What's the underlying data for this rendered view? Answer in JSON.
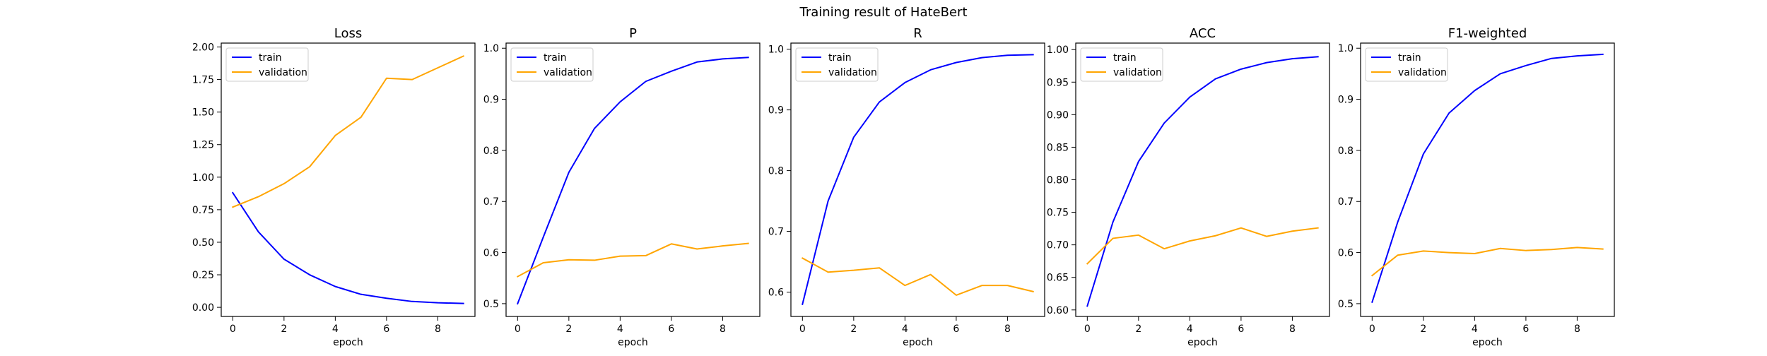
{
  "figure": {
    "suptitle": "Training result of HateBert"
  },
  "colors": {
    "train": "#0000ff",
    "validation": "#ffa500"
  },
  "chart_data": [
    {
      "type": "line",
      "title": "Loss",
      "xlabel": "epoch",
      "ylabel": "",
      "x": [
        0,
        1,
        2,
        3,
        4,
        5,
        6,
        7,
        8,
        9
      ],
      "xticks": [
        0,
        2,
        4,
        6,
        8
      ],
      "xlim": [
        -0.45,
        9.45
      ],
      "ylim": [
        -0.07,
        2.03
      ],
      "yticks": [
        0.0,
        0.25,
        0.5,
        0.75,
        1.0,
        1.25,
        1.5,
        1.75,
        2.0
      ],
      "ytick_labels": [
        "0.00",
        "0.25",
        "0.50",
        "0.75",
        "1.00",
        "1.25",
        "1.50",
        "1.75",
        "2.00"
      ],
      "legend": "upper-left",
      "grid": false,
      "series": [
        {
          "name": "train",
          "values": [
            0.88,
            0.58,
            0.37,
            0.25,
            0.16,
            0.1,
            0.07,
            0.045,
            0.035,
            0.03
          ]
        },
        {
          "name": "validation",
          "values": [
            0.77,
            0.85,
            0.95,
            1.08,
            1.32,
            1.46,
            1.76,
            1.75,
            1.84,
            1.93
          ]
        }
      ]
    },
    {
      "type": "line",
      "title": "P",
      "xlabel": "epoch",
      "ylabel": "",
      "x": [
        0,
        1,
        2,
        3,
        4,
        5,
        6,
        7,
        8,
        9
      ],
      "xticks": [
        0,
        2,
        4,
        6,
        8
      ],
      "xlim": [
        -0.45,
        9.45
      ],
      "ylim": [
        0.475,
        1.01
      ],
      "yticks": [
        0.5,
        0.6,
        0.7,
        0.8,
        0.9,
        1.0
      ],
      "ytick_labels": [
        "0.5",
        "0.6",
        "0.7",
        "0.8",
        "0.9",
        "1.0"
      ],
      "legend": "upper-left",
      "grid": false,
      "series": [
        {
          "name": "train",
          "values": [
            0.5,
            0.63,
            0.757,
            0.843,
            0.895,
            0.935,
            0.955,
            0.973,
            0.979,
            0.982
          ]
        },
        {
          "name": "validation",
          "values": [
            0.553,
            0.58,
            0.586,
            0.585,
            0.593,
            0.594,
            0.617,
            0.607,
            0.613,
            0.618
          ]
        }
      ]
    },
    {
      "type": "line",
      "title": "R",
      "xlabel": "epoch",
      "ylabel": "",
      "x": [
        0,
        1,
        2,
        3,
        4,
        5,
        6,
        7,
        8,
        9
      ],
      "xticks": [
        0,
        2,
        4,
        6,
        8
      ],
      "xlim": [
        -0.45,
        9.45
      ],
      "ylim": [
        0.56,
        1.01
      ],
      "yticks": [
        0.6,
        0.7,
        0.8,
        0.9,
        1.0
      ],
      "ytick_labels": [
        "0.6",
        "0.7",
        "0.8",
        "0.9",
        "1.0"
      ],
      "legend": "upper-left",
      "grid": false,
      "series": [
        {
          "name": "train",
          "values": [
            0.58,
            0.75,
            0.855,
            0.913,
            0.945,
            0.966,
            0.978,
            0.986,
            0.99,
            0.991
          ]
        },
        {
          "name": "validation",
          "values": [
            0.656,
            0.633,
            0.636,
            0.64,
            0.611,
            0.629,
            0.595,
            0.611,
            0.611,
            0.601
          ]
        }
      ]
    },
    {
      "type": "line",
      "title": "ACC",
      "xlabel": "epoch",
      "ylabel": "",
      "x": [
        0,
        1,
        2,
        3,
        4,
        5,
        6,
        7,
        8,
        9
      ],
      "xticks": [
        0,
        2,
        4,
        6,
        8
      ],
      "xlim": [
        -0.45,
        9.45
      ],
      "ylim": [
        0.59,
        1.01
      ],
      "yticks": [
        0.6,
        0.65,
        0.7,
        0.75,
        0.8,
        0.85,
        0.9,
        0.95,
        1.0
      ],
      "ytick_labels": [
        "0.60",
        "0.65",
        "0.70",
        "0.75",
        "0.80",
        "0.85",
        "0.90",
        "0.95",
        "1.00"
      ],
      "legend": "upper-left",
      "grid": false,
      "series": [
        {
          "name": "train",
          "values": [
            0.606,
            0.735,
            0.828,
            0.887,
            0.927,
            0.955,
            0.97,
            0.98,
            0.986,
            0.989
          ]
        },
        {
          "name": "validation",
          "values": [
            0.671,
            0.71,
            0.715,
            0.694,
            0.706,
            0.714,
            0.726,
            0.713,
            0.721,
            0.726
          ]
        }
      ]
    },
    {
      "type": "line",
      "title": "F1-weighted",
      "xlabel": "epoch",
      "ylabel": "",
      "x": [
        0,
        1,
        2,
        3,
        4,
        5,
        6,
        7,
        8,
        9
      ],
      "xticks": [
        0,
        2,
        4,
        6,
        8
      ],
      "xlim": [
        -0.45,
        9.45
      ],
      "ylim": [
        0.475,
        1.01
      ],
      "yticks": [
        0.5,
        0.6,
        0.7,
        0.8,
        0.9,
        1.0
      ],
      "ytick_labels": [
        "0.5",
        "0.6",
        "0.7",
        "0.8",
        "0.9",
        "1.0"
      ],
      "legend": "upper-left",
      "grid": false,
      "series": [
        {
          "name": "train",
          "values": [
            0.503,
            0.66,
            0.793,
            0.873,
            0.917,
            0.95,
            0.966,
            0.98,
            0.985,
            0.988
          ]
        },
        {
          "name": "validation",
          "values": [
            0.555,
            0.595,
            0.603,
            0.6,
            0.598,
            0.608,
            0.604,
            0.606,
            0.61,
            0.607
          ]
        }
      ]
    }
  ]
}
